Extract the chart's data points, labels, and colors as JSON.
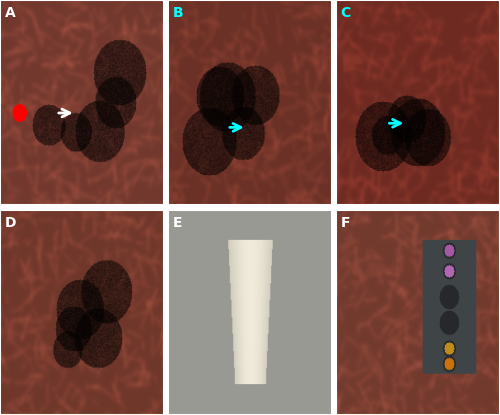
{
  "figsize": [
    5.0,
    4.15
  ],
  "dpi": 100,
  "labels": [
    "A",
    "B",
    "C",
    "D",
    "E",
    "F"
  ],
  "label_colors": [
    "white",
    "cyan",
    "cyan",
    "white",
    "white",
    "white"
  ],
  "border_color": "white",
  "border_lw": 1.5,
  "arrow_colors_top": [
    "white",
    "cyan",
    "cyan"
  ],
  "arrow_colors_bottom": [
    null,
    null,
    null
  ],
  "panel_bg_colors": [
    "#c06050",
    "#c05848",
    "#b85040",
    "#c06050",
    "#a0a098",
    "#c06050"
  ],
  "has_arrow": [
    true,
    true,
    true,
    false,
    false,
    false
  ],
  "label_fontsize": 10,
  "grid_rows": 2,
  "grid_cols": 3,
  "hspace": 0.02,
  "wspace": 0.02
}
